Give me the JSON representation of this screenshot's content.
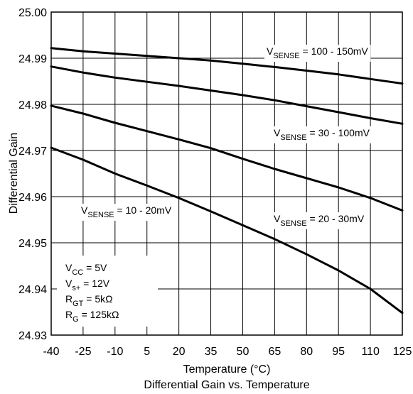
{
  "chart_data": {
    "type": "line",
    "title": "Differential Gain vs. Temperature",
    "xlabel": "Temperature (°C)",
    "ylabel": "Differential Gain",
    "xlim": [
      -40,
      125
    ],
    "ylim": [
      24.93,
      25.0
    ],
    "grid": true,
    "x_ticks": [
      "-40",
      "-25",
      "-10",
      "5",
      "20",
      "35",
      "50",
      "65",
      "80",
      "95",
      "110",
      "125"
    ],
    "y_ticks": [
      "24.93",
      "24.94",
      "24.95",
      "24.96",
      "24.97",
      "24.98",
      "24.99",
      "25.00"
    ],
    "series": [
      {
        "name": "V_SENSE = 100 - 150mV",
        "label_main": "V",
        "label_sub": "SENSE",
        "label_rest": " = 100 - 150mV",
        "x": [
          -40,
          -25,
          -10,
          5,
          20,
          35,
          50,
          65,
          80,
          95,
          110,
          125
        ],
        "y": [
          24.9922,
          24.9915,
          24.991,
          24.9905,
          24.99,
          24.9895,
          24.9888,
          24.9881,
          24.9873,
          24.9865,
          24.9855,
          24.9845
        ]
      },
      {
        "name": "V_SENSE = 30 - 100mV",
        "label_main": "V",
        "label_sub": "SENSE",
        "label_rest": " = 30 - 100mV",
        "x": [
          -40,
          -25,
          -10,
          5,
          20,
          35,
          50,
          65,
          80,
          95,
          110,
          125
        ],
        "y": [
          24.9882,
          24.9869,
          24.9858,
          24.9849,
          24.984,
          24.983,
          24.982,
          24.9809,
          24.9796,
          24.9783,
          24.977,
          24.9758
        ]
      },
      {
        "name": "V_SENSE = 20 - 30mV",
        "label_main": "V",
        "label_sub": "SENSE",
        "label_rest": " = 20 - 30mV",
        "x": [
          -40,
          -25,
          -10,
          5,
          20,
          35,
          50,
          65,
          80,
          95,
          110,
          125
        ],
        "y": [
          24.9797,
          24.978,
          24.976,
          24.9742,
          24.9724,
          24.9705,
          24.9682,
          24.966,
          24.964,
          24.962,
          24.9597,
          24.957
        ]
      },
      {
        "name": "V_SENSE = 10 - 20mV",
        "label_main": "V",
        "label_sub": "SENSE",
        "label_rest": " = 10 - 20mV",
        "x": [
          -40,
          -25,
          -10,
          5,
          20,
          35,
          50,
          65,
          80,
          95,
          110,
          125
        ],
        "y": [
          24.9706,
          24.968,
          24.965,
          24.9624,
          24.9597,
          24.9568,
          24.9538,
          24.9508,
          24.9475,
          24.944,
          24.94,
          24.9348
        ]
      }
    ],
    "conditions": [
      {
        "main": "V",
        "sub": "CC",
        "rest": " = 5V"
      },
      {
        "main": "V",
        "sub": "s+",
        "rest": " = 12V"
      },
      {
        "main": "R",
        "sub": "GT",
        "rest": " = 5kΩ"
      },
      {
        "main": "R",
        "sub": "G",
        "rest": " = 125kΩ"
      }
    ]
  }
}
